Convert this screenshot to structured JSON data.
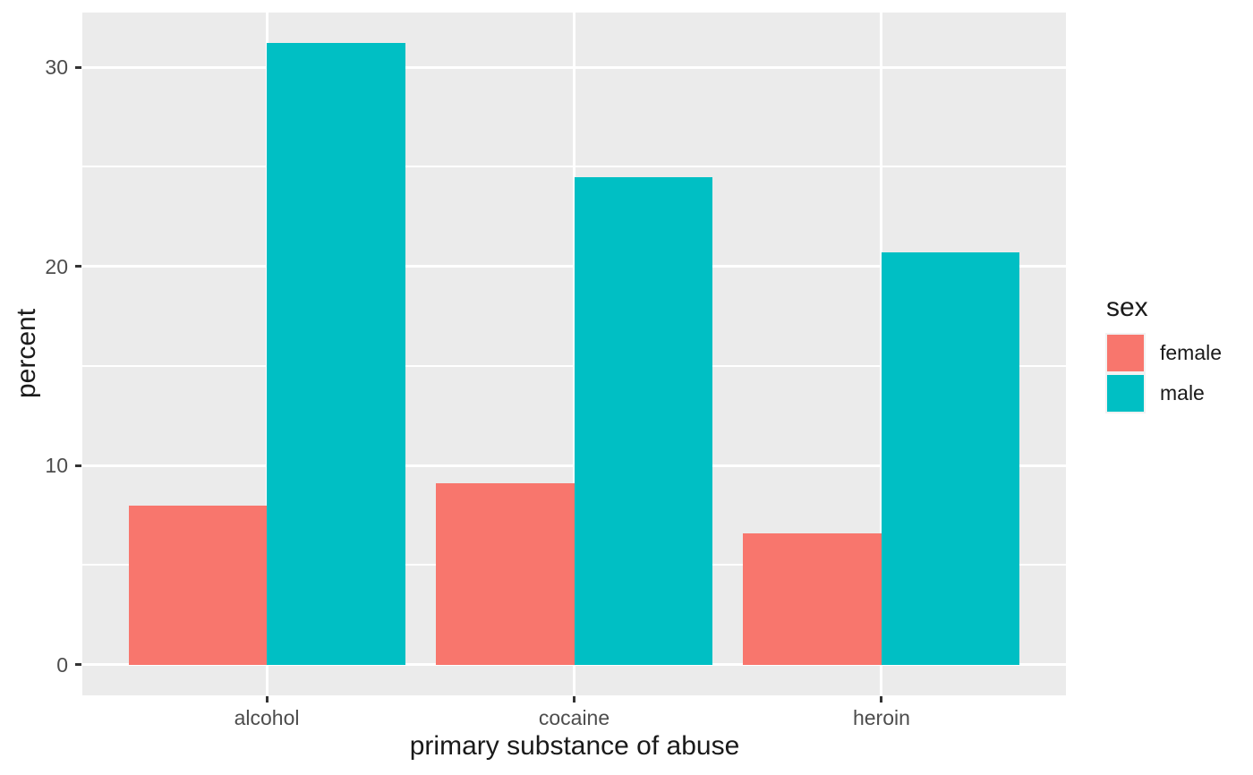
{
  "chart_data": {
    "type": "bar",
    "bar_mode": "dodged",
    "title": "",
    "xlabel": "primary substance of abuse",
    "ylabel": "percent",
    "categories": [
      "alcohol",
      "cocaine",
      "heroin"
    ],
    "series": [
      {
        "name": "female",
        "color": "#F8766D",
        "values": [
          8.0,
          9.1,
          6.6
        ]
      },
      {
        "name": "male",
        "color": "#00BFC4",
        "values": [
          31.2,
          24.5,
          20.7
        ]
      }
    ],
    "legend_title": "sex",
    "legend_position": "right",
    "y_ticks": [
      0,
      10,
      20,
      30
    ],
    "y_minor_ticks": [
      5,
      15,
      25
    ],
    "ylim": [
      -1.55,
      32.75
    ],
    "grid": true,
    "colors": {
      "panel_background": "#EBEBEB",
      "gridline": "#FFFFFF",
      "tick_mark": "#333333",
      "tick_label": "#4D4D4D",
      "axis_title_text": "#1A1A1A"
    }
  }
}
